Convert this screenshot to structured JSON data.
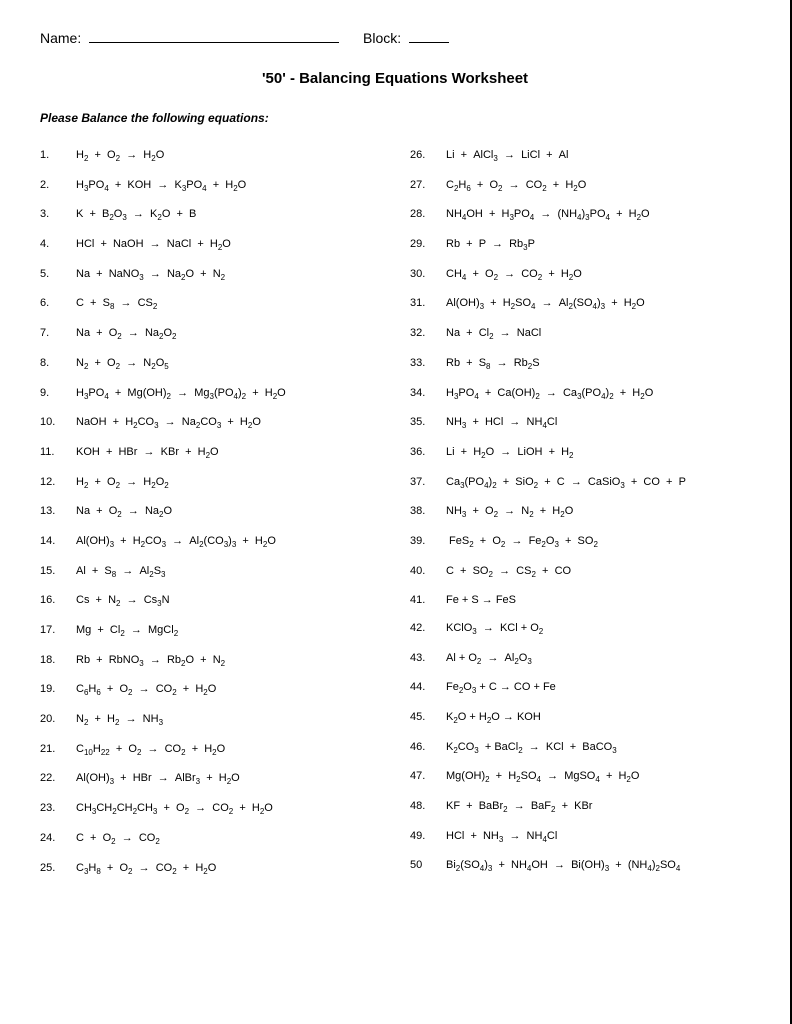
{
  "header": {
    "name_label": "Name:",
    "block_label": "Block:"
  },
  "title": "'50' - Balancing Equations Worksheet",
  "instruction": "Please Balance the following equations:",
  "left": [
    {
      "n": "1.",
      "eq": "H<sub>2</sub> &nbsp;+ &nbsp;O<sub>2</sub> &nbsp;→ &nbsp;H<sub>2</sub>O"
    },
    {
      "n": "2.",
      "eq": "H<sub>3</sub>PO<sub>4</sub> &nbsp;+ &nbsp;KOH &nbsp;→ &nbsp;K<sub>3</sub>PO<sub>4</sub> &nbsp;+ &nbsp;H<sub>2</sub>O"
    },
    {
      "n": "3.",
      "eq": "K &nbsp;+ &nbsp;B<sub>2</sub>O<sub>3</sub> &nbsp;→ &nbsp;K<sub>2</sub>O &nbsp;+ &nbsp;B"
    },
    {
      "n": "4.",
      "eq": "HCl &nbsp;+ &nbsp;NaOH &nbsp;→ &nbsp;NaCl &nbsp;+ &nbsp;H<sub>2</sub>O"
    },
    {
      "n": "5.",
      "eq": "Na &nbsp;+ &nbsp;NaNO<sub>3</sub> &nbsp;→ &nbsp;Na<sub>2</sub>O &nbsp;+ &nbsp;N<sub>2</sub>"
    },
    {
      "n": "6.",
      "eq": "C &nbsp;+ &nbsp;S<sub>8</sub> &nbsp;→ &nbsp;CS<sub>2</sub>"
    },
    {
      "n": "7.",
      "eq": "Na &nbsp;+ &nbsp;O<sub>2</sub> &nbsp;→ &nbsp;Na<sub>2</sub>O<sub>2</sub>"
    },
    {
      "n": "8.",
      "eq": "N<sub>2</sub> &nbsp;+ &nbsp;O<sub>2</sub> &nbsp;→ &nbsp;N<sub>2</sub>O<sub>5</sub>"
    },
    {
      "n": "9.",
      "eq": "H<sub>3</sub>PO<sub>4</sub> &nbsp;+ &nbsp;Mg(OH)<sub>2</sub> &nbsp;→ &nbsp;Mg<sub>3</sub>(PO<sub>4</sub>)<sub>2</sub> &nbsp;+ &nbsp;H<sub>2</sub>O"
    },
    {
      "n": "10.",
      "eq": "NaOH &nbsp;+ &nbsp;H<sub>2</sub>CO<sub>3</sub> &nbsp;→ &nbsp;Na<sub>2</sub>CO<sub>3</sub> &nbsp;+ &nbsp;H<sub>2</sub>O"
    },
    {
      "n": "11.",
      "eq": "KOH &nbsp;+ &nbsp;HBr &nbsp;→ &nbsp;KBr &nbsp;+ &nbsp;H<sub>2</sub>O"
    },
    {
      "n": "12.",
      "eq": "H<sub>2</sub> &nbsp;+ &nbsp;O<sub>2</sub> &nbsp;→ &nbsp;H<sub>2</sub>O<sub>2</sub>"
    },
    {
      "n": "13.",
      "eq": "Na &nbsp;+ &nbsp;O<sub>2</sub> &nbsp;→ &nbsp;Na<sub>2</sub>O"
    },
    {
      "n": "14.",
      "eq": "Al(OH)<sub>3</sub> &nbsp;+ &nbsp;H<sub>2</sub>CO<sub>3</sub> &nbsp;→ &nbsp;Al<sub>2</sub>(CO<sub>3</sub>)<sub>3</sub> &nbsp;+ &nbsp;H<sub>2</sub>O"
    },
    {
      "n": "15.",
      "eq": "Al &nbsp;+ &nbsp;S<sub>8</sub> &nbsp;→ &nbsp;Al<sub>2</sub>S<sub>3</sub>"
    },
    {
      "n": "16.",
      "eq": "Cs &nbsp;+ &nbsp;N<sub>2</sub> &nbsp;→ &nbsp;Cs<sub>3</sub>N"
    },
    {
      "n": "17.",
      "eq": "Mg &nbsp;+ &nbsp;Cl<sub>2</sub> &nbsp;→ &nbsp;MgCl<sub>2</sub>"
    },
    {
      "n": "18.",
      "eq": "Rb &nbsp;+ &nbsp;RbNO<sub>3</sub> &nbsp;→ &nbsp;Rb<sub>2</sub>O &nbsp;+ &nbsp;N<sub>2</sub>"
    },
    {
      "n": "19.",
      "eq": "C<sub>6</sub>H<sub>6</sub> &nbsp;+ &nbsp;O<sub>2</sub> &nbsp;→ &nbsp;CO<sub>2</sub> &nbsp;+ &nbsp;H<sub>2</sub>O"
    },
    {
      "n": "20.",
      "eq": "N<sub>2</sub> &nbsp;+ &nbsp;H<sub>2</sub> &nbsp;→ &nbsp;NH<sub>3</sub>"
    },
    {
      "n": "21.",
      "eq": "C<sub>10</sub>H<sub>22</sub> &nbsp;+ &nbsp;O<sub>2</sub> &nbsp;→ &nbsp;CO<sub>2</sub> &nbsp;+ &nbsp;H<sub>2</sub>O"
    },
    {
      "n": "22.",
      "eq": "Al(OH)<sub>3</sub> &nbsp;+ &nbsp;HBr &nbsp;→ &nbsp;AlBr<sub>3</sub> &nbsp;+ &nbsp;H<sub>2</sub>O"
    },
    {
      "n": "23.",
      "eq": "CH<sub>3</sub>CH<sub>2</sub>CH<sub>2</sub>CH<sub>3</sub> &nbsp;+ &nbsp;O<sub>2</sub> &nbsp;→ &nbsp;CO<sub>2</sub> &nbsp;+ &nbsp;H<sub>2</sub>O"
    },
    {
      "n": "24.",
      "eq": "C &nbsp;+ &nbsp;O<sub>2</sub> &nbsp;→ &nbsp;CO<sub>2</sub>"
    },
    {
      "n": "25.",
      "eq": "C<sub>3</sub>H<sub>8</sub> &nbsp;+ &nbsp;O<sub>2</sub> &nbsp;→ &nbsp;CO<sub>2</sub> &nbsp;+ &nbsp;H<sub>2</sub>O"
    }
  ],
  "right": [
    {
      "n": "26.",
      "eq": "Li &nbsp;+ &nbsp;AlCl<sub>3</sub> &nbsp;→ &nbsp;LiCl &nbsp;+ &nbsp;Al"
    },
    {
      "n": "27.",
      "eq": "C<sub>2</sub>H<sub>6</sub> &nbsp;+ &nbsp;O<sub>2</sub> &nbsp;→ &nbsp;CO<sub>2</sub> &nbsp;+ &nbsp;H<sub>2</sub>O"
    },
    {
      "n": "28.",
      "eq": "NH<sub>4</sub>OH &nbsp;+ &nbsp;H<sub>3</sub>PO<sub>4</sub> &nbsp;→ &nbsp;(NH<sub>4</sub>)<sub>3</sub>PO<sub>4</sub> &nbsp;+ &nbsp;H<sub>2</sub>O"
    },
    {
      "n": "29.",
      "eq": "Rb &nbsp;+ &nbsp;P &nbsp;→ &nbsp;Rb<sub>3</sub>P"
    },
    {
      "n": "30.",
      "eq": "CH<sub>4</sub> &nbsp;+ &nbsp;O<sub>2</sub> &nbsp;→ &nbsp;CO<sub>2</sub> &nbsp;+ &nbsp;H<sub>2</sub>O"
    },
    {
      "n": "31.",
      "eq": "Al(OH)<sub>3</sub> &nbsp;+ &nbsp;H<sub>2</sub>SO<sub>4</sub> &nbsp;→ &nbsp;Al<sub>2</sub>(SO<sub>4</sub>)<sub>3</sub> &nbsp;+ &nbsp;H<sub>2</sub>O"
    },
    {
      "n": "32.",
      "eq": "Na &nbsp;+ &nbsp;Cl<sub>2</sub> &nbsp;→ &nbsp;NaCl"
    },
    {
      "n": "33.",
      "eq": "Rb &nbsp;+ &nbsp;S<sub>8</sub> &nbsp;→ &nbsp;Rb<sub>2</sub>S"
    },
    {
      "n": "34.",
      "eq": "H<sub>3</sub>PO<sub>4</sub> &nbsp;+ &nbsp;Ca(OH)<sub>2</sub> &nbsp;→ &nbsp;Ca<sub>3</sub>(PO<sub>4</sub>)<sub>2</sub> &nbsp;+ &nbsp;H<sub>2</sub>O"
    },
    {
      "n": "35.",
      "eq": "NH<sub>3</sub> &nbsp;+ &nbsp;HCl &nbsp;→ &nbsp;NH<sub>4</sub>Cl"
    },
    {
      "n": "36.",
      "eq": "Li &nbsp;+ &nbsp;H<sub>2</sub>O &nbsp;→ &nbsp;LiOH &nbsp;+ &nbsp;H<sub>2</sub>"
    },
    {
      "n": "37.",
      "eq": "Ca<sub>3</sub>(PO<sub>4</sub>)<sub>2</sub> &nbsp;+ &nbsp;SiO<sub>2</sub> &nbsp;+ &nbsp;C &nbsp;→ &nbsp;CaSiO<sub>3</sub> &nbsp;+ &nbsp;CO &nbsp;+ &nbsp;P"
    },
    {
      "n": "38.",
      "eq": "NH<sub>3</sub> &nbsp;+ &nbsp;O<sub>2</sub> &nbsp;→ &nbsp;N<sub>2</sub> &nbsp;+ &nbsp;H<sub>2</sub>O"
    },
    {
      "n": "39.",
      "eq": "&nbsp;FeS<sub>2</sub> &nbsp;+ &nbsp;O<sub>2</sub> &nbsp;→ &nbsp;Fe<sub>2</sub>O<sub>3</sub> &nbsp;+ &nbsp;SO<sub>2</sub>"
    },
    {
      "n": "40.",
      "eq": "C &nbsp;+ &nbsp;SO<sub>2</sub> &nbsp;→ &nbsp;CS<sub>2</sub> &nbsp;+ &nbsp;CO"
    },
    {
      "n": "41.",
      "eq": "Fe + S → FeS"
    },
    {
      "n": "42.",
      "eq": "KClO<sub>3</sub> &nbsp;→ &nbsp;KCl + O<sub>2</sub>"
    },
    {
      "n": "43.",
      "eq": "Al + O<sub>2</sub> &nbsp;→ &nbsp;Al<sub>2</sub>O<sub>3</sub>"
    },
    {
      "n": "44.",
      "eq": "Fe<sub>2</sub>O<sub>3</sub> + C → CO + Fe"
    },
    {
      "n": "45.",
      "eq": "K<sub>2</sub>O + H<sub>2</sub>O → KOH"
    },
    {
      "n": "46.",
      "eq": "K<sub>2</sub>CO<sub>3</sub> &nbsp;+ BaCl<sub>2</sub> &nbsp;→ &nbsp;KCl &nbsp;+ &nbsp;BaCO<sub>3</sub>"
    },
    {
      "n": "47.",
      "eq": "Mg(OH)<sub>2</sub> &nbsp;+ &nbsp;H<sub>2</sub>SO<sub>4</sub> &nbsp;→ &nbsp;MgSO<sub>4</sub> &nbsp;+ &nbsp;H<sub>2</sub>O"
    },
    {
      "n": "48.",
      "eq": "KF &nbsp;+ &nbsp;BaBr<sub>2</sub> &nbsp;→ &nbsp;BaF<sub>2</sub> &nbsp;+ &nbsp;KBr"
    },
    {
      "n": "49.",
      "eq": "HCl &nbsp;+ &nbsp;NH<sub>3</sub> &nbsp;→ &nbsp;NH<sub>4</sub>Cl"
    },
    {
      "n": "50",
      "eq": "Bi<sub>2</sub>(SO<sub>4</sub>)<sub>3</sub> &nbsp;+ &nbsp;NH<sub>4</sub>OH &nbsp;→ &nbsp;Bi(OH)<sub>3</sub> &nbsp;+ &nbsp;(NH<sub>4</sub>)<sub>2</sub>SO<sub>4</sub>"
    }
  ]
}
